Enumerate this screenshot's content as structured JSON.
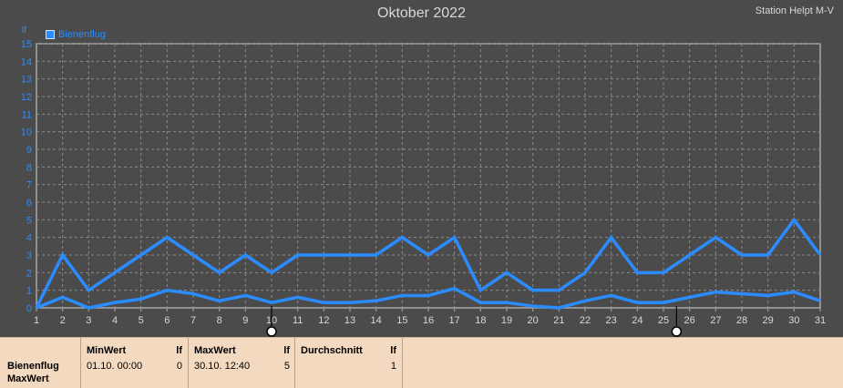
{
  "chart_data": {
    "type": "line",
    "title": "Oktober 2022",
    "station": "Station Helpt M-V",
    "ylabel": "lf",
    "x": [
      1,
      2,
      3,
      4,
      5,
      6,
      7,
      8,
      9,
      10,
      11,
      12,
      13,
      14,
      15,
      16,
      17,
      18,
      19,
      20,
      21,
      22,
      23,
      24,
      25,
      26,
      27,
      28,
      29,
      30,
      31
    ],
    "xlim": [
      1,
      31
    ],
    "ylim": [
      0,
      15
    ],
    "yticks": [
      0,
      1,
      2,
      3,
      4,
      5,
      6,
      7,
      8,
      9,
      10,
      11,
      12,
      13,
      14,
      15
    ],
    "grid": true,
    "legend_position": "top-left",
    "legend": [
      "Bienenflug"
    ],
    "series": [
      {
        "values": [
          0,
          3,
          1,
          2,
          3,
          4,
          3,
          2,
          3,
          2,
          3,
          3,
          3,
          3,
          4,
          3,
          4,
          1,
          2,
          1,
          1,
          2,
          4,
          2,
          2,
          3,
          4,
          3,
          3,
          5,
          3
        ]
      },
      {
        "values": [
          0,
          0.6,
          0,
          0.3,
          0.5,
          1.0,
          0.8,
          0.4,
          0.7,
          0.3,
          0.6,
          0.3,
          0.3,
          0.4,
          0.7,
          0.7,
          1.1,
          0.3,
          0.3,
          0.1,
          0,
          0.4,
          0.7,
          0.3,
          0.3,
          0.6,
          0.9,
          0.8,
          0.7,
          0.9,
          0.4
        ]
      }
    ],
    "markers": [
      10,
      25.5
    ],
    "color": "#2a8cff"
  },
  "stats": {
    "row_labels": [
      "Bienenflug",
      "MaxWert"
    ],
    "min": {
      "header": "MinWert",
      "unit": "lf",
      "time": "01.10.  00:00",
      "value": "0"
    },
    "max": {
      "header": "MaxWert",
      "unit": "lf",
      "time": "30.10.  12:40",
      "value": "5"
    },
    "avg": {
      "header": "Durchschnitt",
      "unit": "lf",
      "value": "1"
    }
  }
}
